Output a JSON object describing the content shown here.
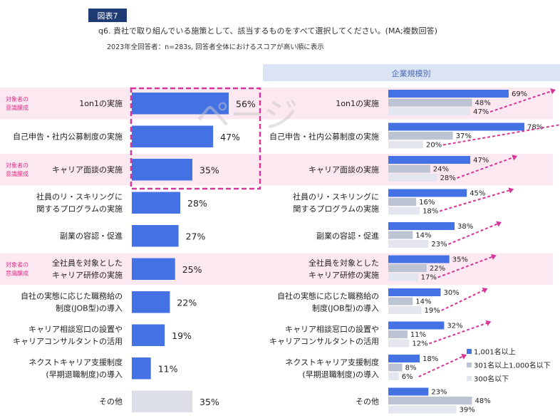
{
  "figure_label": "図表7",
  "question": "q6. 貴社で取り組んでいる施策として、該当するものをすべて選択してください。(MA;複数回答)",
  "note": "2023年全回答者：n=283s, 回答者全体におけるスコアが高い順に表示",
  "right_header": "企業規模別",
  "watermark": "ページ",
  "colors": {
    "bar_main": "#4472e4",
    "bar_other": "#dcdfe8",
    "series": [
      "#4472e4",
      "#bcc3d2",
      "#e3e6ee"
    ],
    "highlight_band": "#fce8f1",
    "highlight_text": "#e0358a",
    "arrow": "#d6369a",
    "header_bg": "#dbe4f5",
    "header_text": "#4a6ab4",
    "label_bg": "#1f3b73"
  },
  "chart_data": [
    {
      "type": "bar",
      "orientation": "horizontal",
      "title": "",
      "categories": [
        "1on1の実施",
        "自己申告・社内公募制度の実施",
        "キャリア面談の実施",
        "社員のリ・スキリングに\n関するプログラムの実施",
        "副業の容認・促進",
        "全社員を対象とした\nキャリア研修の実施",
        "自社の実態に応じた職務給の\n制度(JOB型)の導入",
        "キャリア相談窓口の設置や\nキャリアコンサルタントの活用",
        "ネクストキャリア支援制度\n(早期退職制度)の導入",
        "その他"
      ],
      "values": [
        56,
        47,
        35,
        28,
        27,
        25,
        22,
        19,
        11,
        35
      ],
      "value_labels": [
        "56%",
        "47%",
        "35%",
        "28%",
        "27%",
        "25%",
        "22%",
        "19%",
        "11%",
        "35%"
      ],
      "tags": [
        "対象者の\n意識醸成",
        "",
        "対象者の\n意識醸成",
        "",
        "",
        "対象者の\n意識醸成",
        "",
        "",
        "",
        ""
      ],
      "xlim": [
        0,
        100
      ]
    },
    {
      "type": "bar",
      "orientation": "horizontal",
      "title": "企業規模別",
      "categories": [
        "1on1の実施",
        "自己申告・社内公募制度の実施",
        "キャリア面談の実施",
        "社員のリ・スキリングに\n関するプログラムの実施",
        "副業の容認・促進",
        "全社員を対象とした\nキャリア研修の実施",
        "自社の実態に応じた職務給の\n制度(JOB型)の導入",
        "キャリア相談窓口の設置や\nキャリアコンサルタントの活用",
        "ネクストキャリア支援制度\n(早期退職制度)の導入",
        "その他"
      ],
      "series": [
        {
          "name": "1,001名以上",
          "values": [
            69,
            78,
            47,
            45,
            38,
            35,
            30,
            32,
            18,
            23
          ]
        },
        {
          "name": "301名以上1,000名以下",
          "values": [
            48,
            37,
            24,
            16,
            14,
            22,
            14,
            11,
            8,
            48
          ]
        },
        {
          "name": "300名以下",
          "values": [
            47,
            20,
            28,
            18,
            23,
            17,
            19,
            12,
            6,
            39
          ]
        }
      ],
      "legend": "bottom-right",
      "xlim": [
        0,
        100
      ]
    }
  ]
}
